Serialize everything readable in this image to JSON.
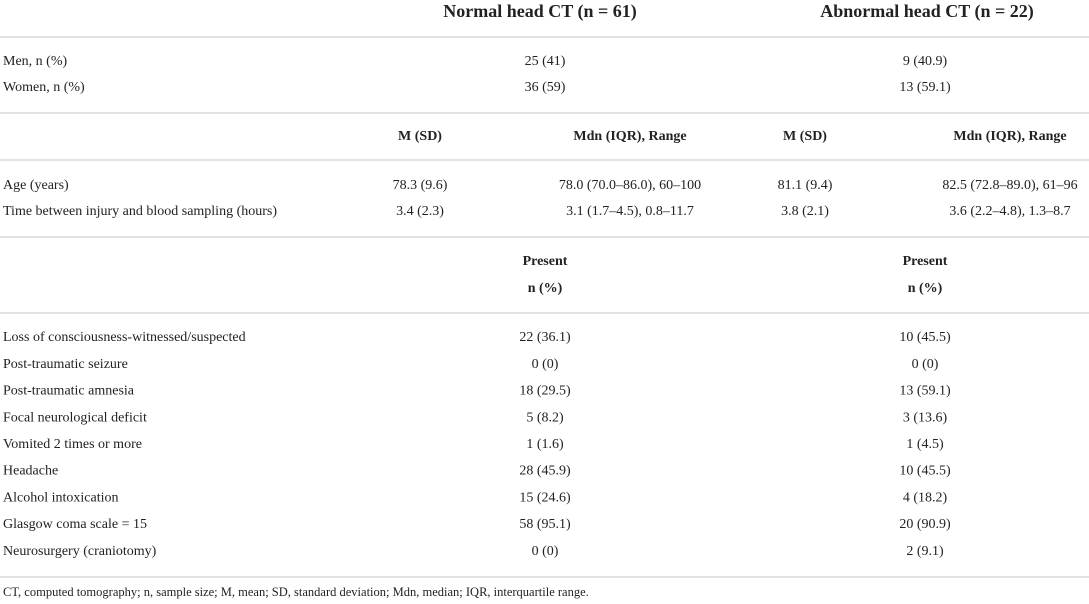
{
  "header": {
    "columns": [
      "Normal head CT (n = 61)",
      "Abnormal head CT (n = 22)"
    ]
  },
  "sex_rows": [
    {
      "label": "Men, n (%)",
      "values": [
        "25 (41)",
        "9 (40.9)"
      ]
    },
    {
      "label": "Women, n (%)",
      "values": [
        "36 (59)",
        "13 (59.1)"
      ]
    }
  ],
  "stats_header": [
    "M (SD)",
    "Mdn (IQR), Range",
    "M (SD)",
    "Mdn (IQR), Range"
  ],
  "stats_rows": [
    {
      "label": "Age (years)",
      "values": [
        "78.3 (9.6)",
        "78.0 (70.0–86.0), 60–100",
        "81.1 (9.4)",
        "82.5 (72.8–89.0), 61–96"
      ]
    },
    {
      "label": "Time between injury and blood sampling (hours)",
      "values": [
        "3.4 (2.3)",
        "3.1 (1.7–4.5), 0.8–11.7",
        "3.8 (2.1)",
        "3.6 (2.2–4.8), 1.3–8.7"
      ]
    }
  ],
  "present_header": {
    "line1": [
      "Present",
      "Present"
    ],
    "line2": [
      "n (%)",
      "n (%)"
    ]
  },
  "symptom_rows": [
    {
      "label": "Loss of consciousness-witnessed/suspected",
      "values": [
        "22 (36.1)",
        "10 (45.5)"
      ]
    },
    {
      "label": "Post-traumatic seizure",
      "values": [
        "0 (0)",
        "0 (0)"
      ]
    },
    {
      "label": "Post-traumatic amnesia",
      "values": [
        "18 (29.5)",
        "13 (59.1)"
      ]
    },
    {
      "label": "Focal neurological deficit",
      "values": [
        "5 (8.2)",
        "3 (13.6)"
      ]
    },
    {
      "label": "Vomited 2 times or more",
      "values": [
        "1 (1.6)",
        "1 (4.5)"
      ]
    },
    {
      "label": "Headache",
      "values": [
        "28 (45.9)",
        "10 (45.5)"
      ]
    },
    {
      "label": "Alcohol intoxication",
      "values": [
        "15 (24.6)",
        "4 (18.2)"
      ]
    },
    {
      "label": "Glasgow coma scale = 15",
      "values": [
        "58 (95.1)",
        "20 (90.9)"
      ]
    },
    {
      "label": "Neurosurgery (craniotomy)",
      "values": [
        "0 (0)",
        "2 (9.1)"
      ]
    }
  ],
  "footnote": "CT, computed tomography; n, sample size; M, mean; SD, standard deviation; Mdn, median; IQR, interquartile range."
}
